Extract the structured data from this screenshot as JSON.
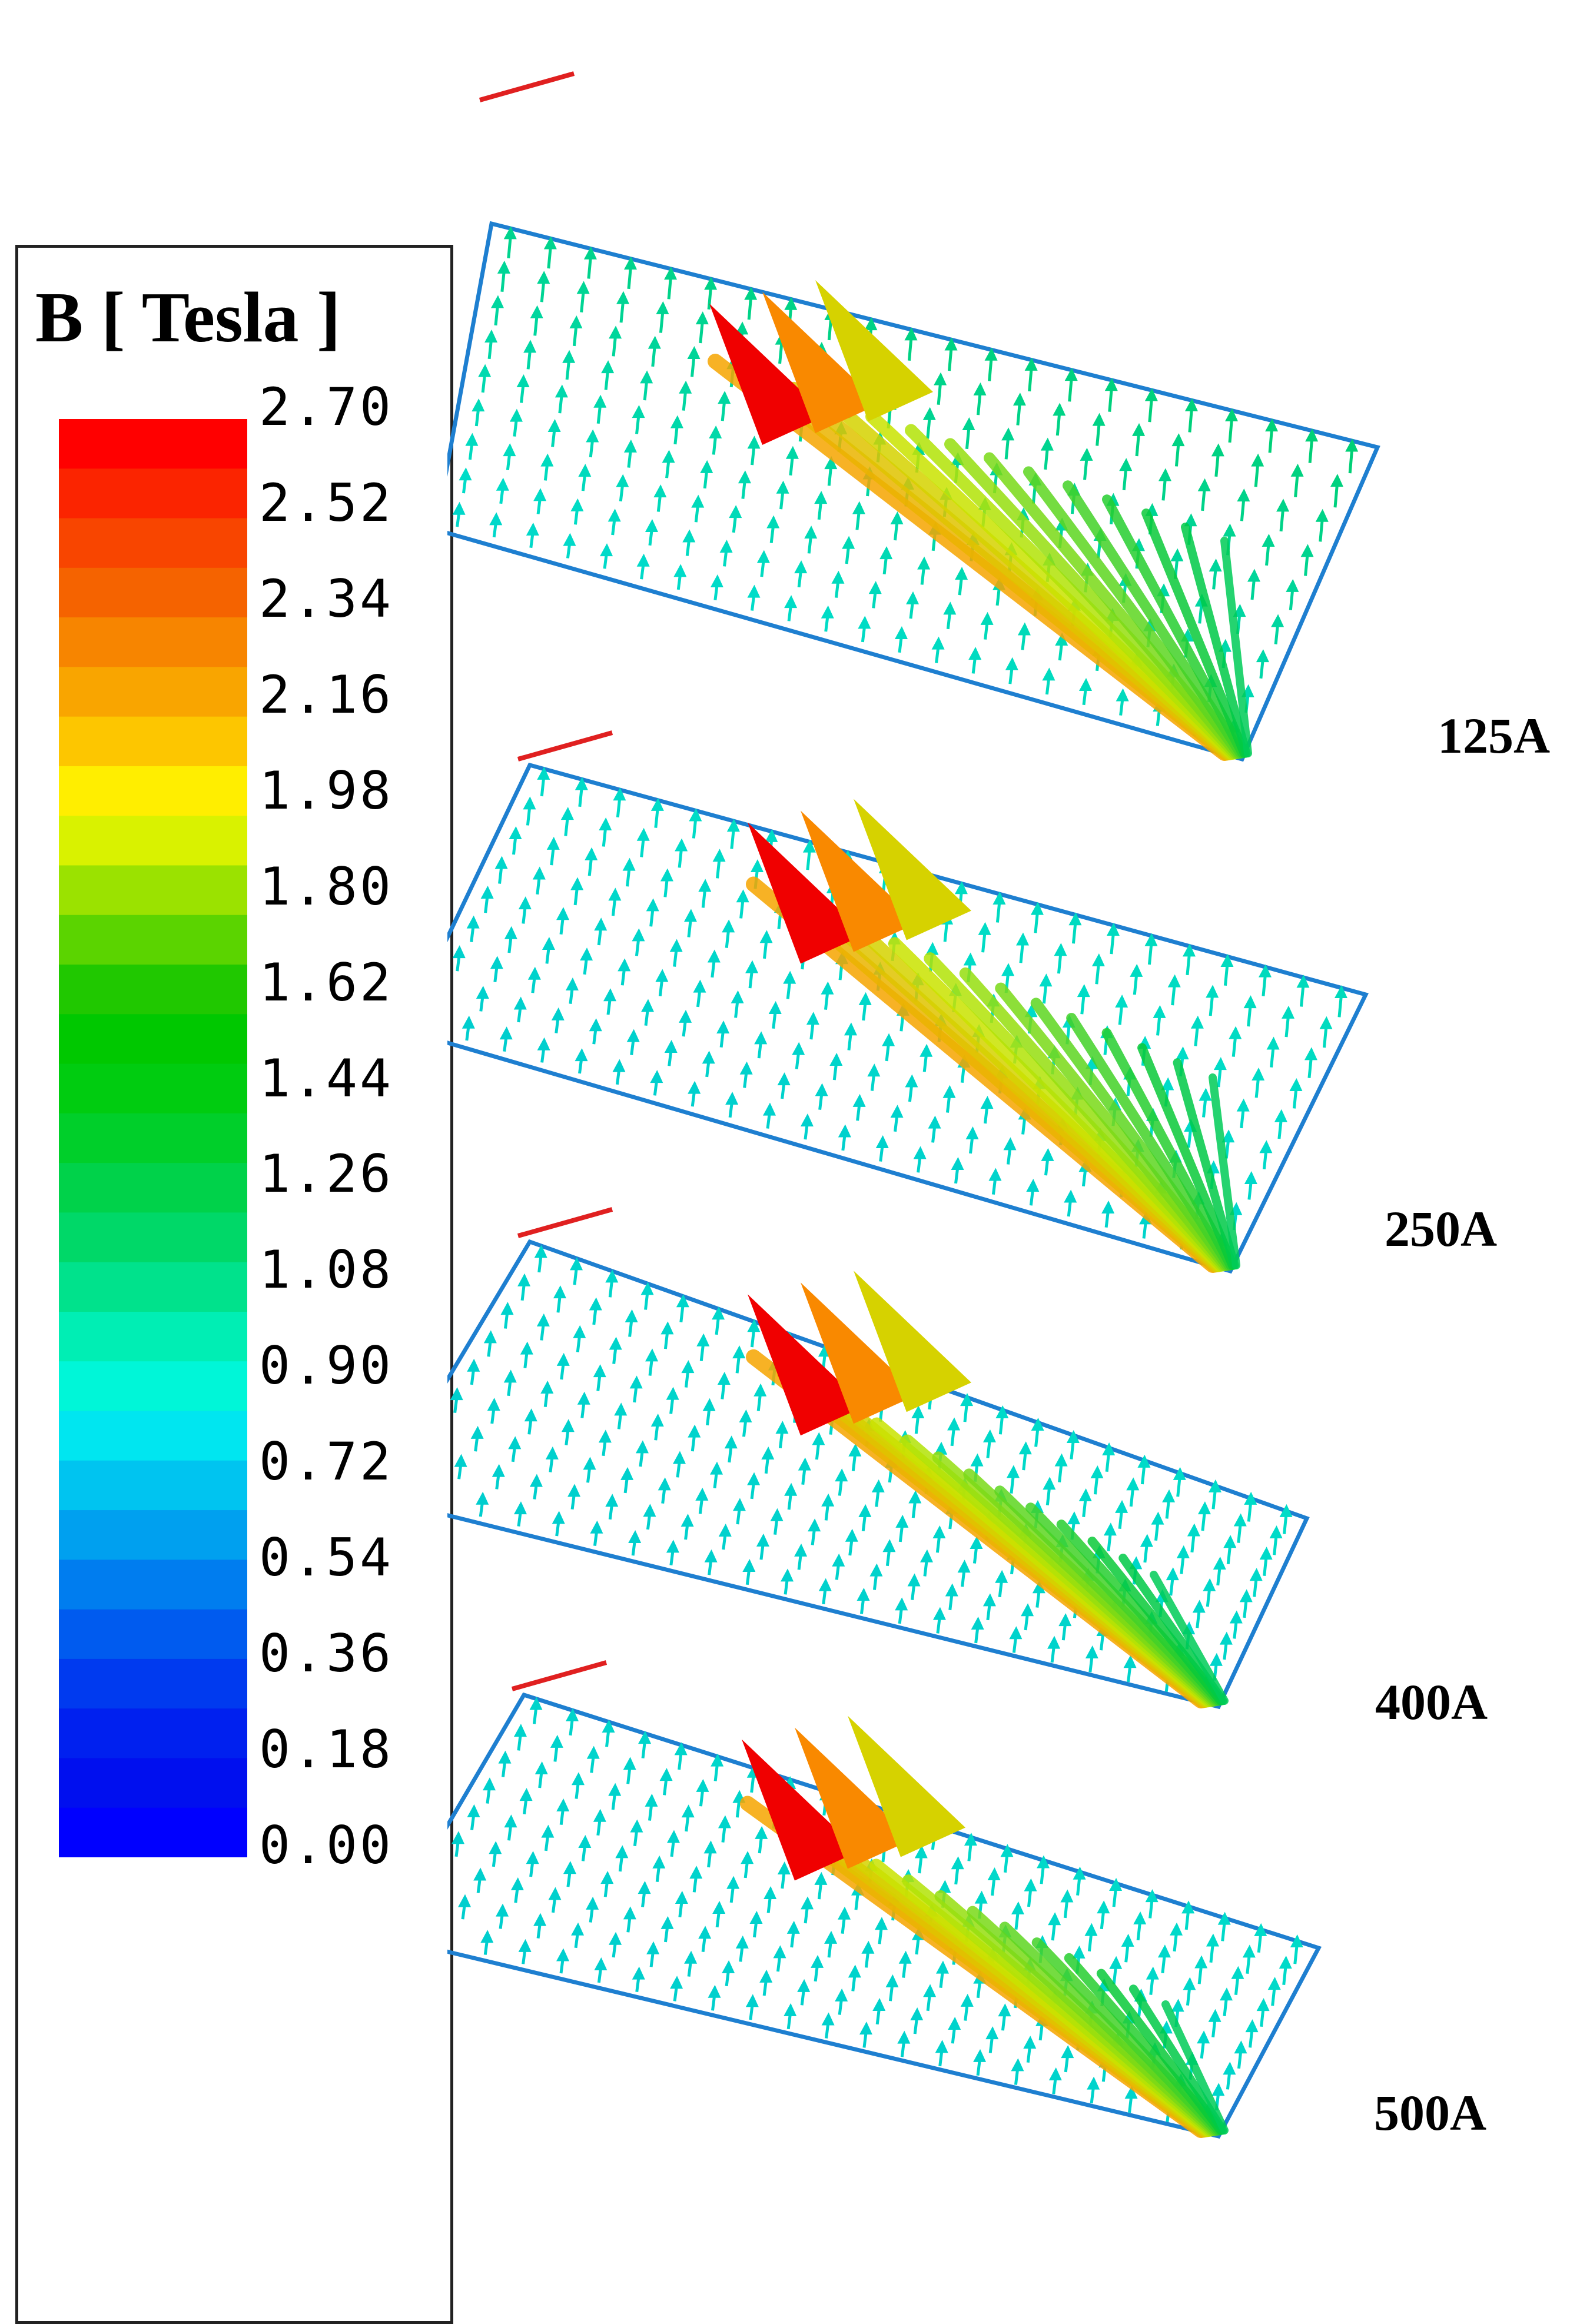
{
  "legend": {
    "title": "B [ Tesla ]",
    "ticks": [
      "2.70",
      "2.52",
      "2.34",
      "2.16",
      "1.98",
      "1.80",
      "1.62",
      "1.44",
      "1.26",
      "1.08",
      "0.90",
      "0.72",
      "0.54",
      "0.36",
      "0.18",
      "0.00"
    ],
    "colors": [
      "#ff0000",
      "#fb2400",
      "#f84500",
      "#f56300",
      "#f78500",
      "#f9a500",
      "#fdc600",
      "#ffee00",
      "#d9f200",
      "#9be200",
      "#5bd400",
      "#20c800",
      "#00c800",
      "#00cc10",
      "#00cf2a",
      "#00d24a",
      "#00d868",
      "#00e28c",
      "#00eeb4",
      "#00f6d8",
      "#00e6f0",
      "#00c4f0",
      "#00a0ef",
      "#007def",
      "#005bef",
      "#003aef",
      "#0020ef",
      "#000fef",
      "#0000ff"
    ]
  },
  "panels": [
    {
      "label": "125A"
    },
    {
      "label": "250A"
    },
    {
      "label": "400A"
    },
    {
      "label": "500A"
    }
  ]
}
